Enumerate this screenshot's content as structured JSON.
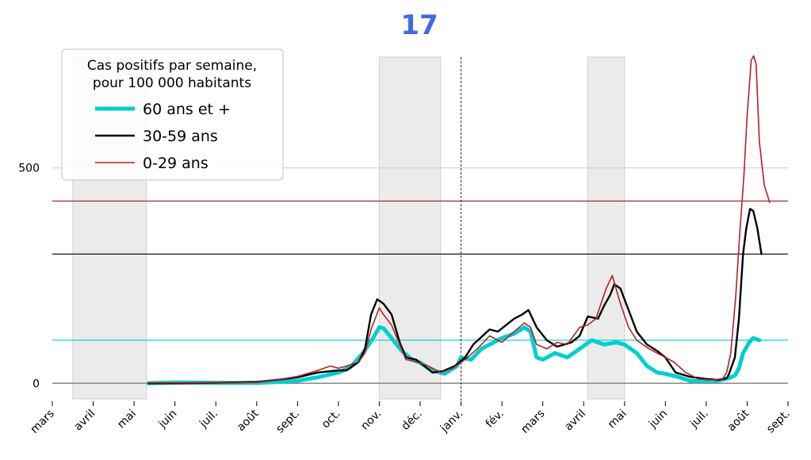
{
  "chart_data": {
    "type": "line",
    "title": "17",
    "title_color": "#4169e1",
    "legend": {
      "title_lines": [
        "Cas positifs par semaine,",
        "pour 100 000 habitants"
      ],
      "placement": "top-left"
    },
    "x_ticks": [
      "mars",
      "avril",
      "mai",
      "juin",
      "juil.",
      "août",
      "sept.",
      "oct.",
      "nov.",
      "déc.",
      "janv.",
      "fév.",
      "mars",
      "avril",
      "mai",
      "juin",
      "juil.",
      "août",
      "sept."
    ],
    "y_ticks": [
      0,
      500
    ],
    "ylim": [
      -40,
      770
    ],
    "xlim": [
      0,
      18
    ],
    "shaded_periods": [
      [
        0.5,
        2.3
      ],
      [
        8.0,
        9.5
      ],
      [
        13.1,
        14.0
      ]
    ],
    "vline_x": 10.0,
    "reference_lines": [
      {
        "y": 100,
        "color": "#00cccc"
      },
      {
        "y": 300,
        "color": "#000000"
      },
      {
        "y": 423,
        "color": "#b22222"
      }
    ],
    "series": [
      {
        "name": "60 ans et +",
        "color": "#00ced1",
        "width": 5,
        "points": [
          [
            2.35,
            0
          ],
          [
            3,
            2
          ],
          [
            4,
            1
          ],
          [
            5,
            1
          ],
          [
            5.5,
            3
          ],
          [
            6,
            6
          ],
          [
            6.5,
            14
          ],
          [
            7,
            25
          ],
          [
            7.3,
            38
          ],
          [
            7.6,
            70
          ],
          [
            7.85,
            105
          ],
          [
            8.0,
            130
          ],
          [
            8.1,
            128
          ],
          [
            8.3,
            105
          ],
          [
            8.55,
            75
          ],
          [
            8.8,
            55
          ],
          [
            9.0,
            48
          ],
          [
            9.3,
            30
          ],
          [
            9.6,
            22
          ],
          [
            9.9,
            40
          ],
          [
            10.0,
            60
          ],
          [
            10.25,
            55
          ],
          [
            10.5,
            80
          ],
          [
            10.8,
            95
          ],
          [
            11.0,
            105
          ],
          [
            11.3,
            115
          ],
          [
            11.55,
            130
          ],
          [
            11.7,
            120
          ],
          [
            11.85,
            60
          ],
          [
            12.0,
            55
          ],
          [
            12.3,
            70
          ],
          [
            12.6,
            60
          ],
          [
            12.9,
            80
          ],
          [
            13.2,
            100
          ],
          [
            13.5,
            90
          ],
          [
            13.8,
            95
          ],
          [
            14.0,
            90
          ],
          [
            14.3,
            70
          ],
          [
            14.55,
            40
          ],
          [
            14.8,
            25
          ],
          [
            15.0,
            22
          ],
          [
            15.3,
            15
          ],
          [
            15.6,
            6
          ],
          [
            15.9,
            5
          ],
          [
            16.3,
            6
          ],
          [
            16.55,
            12
          ],
          [
            16.7,
            18
          ],
          [
            16.8,
            35
          ],
          [
            16.9,
            70
          ],
          [
            17.05,
            95
          ],
          [
            17.15,
            105
          ],
          [
            17.3,
            100
          ]
        ]
      },
      {
        "name": "30-59 ans",
        "color": "#000000",
        "width": 2.4,
        "points": [
          [
            2.35,
            0
          ],
          [
            3,
            0
          ],
          [
            4,
            1
          ],
          [
            5,
            3
          ],
          [
            5.5,
            8
          ],
          [
            6,
            14
          ],
          [
            6.5,
            25
          ],
          [
            7,
            30
          ],
          [
            7.2,
            30
          ],
          [
            7.5,
            50
          ],
          [
            7.65,
            80
          ],
          [
            7.8,
            160
          ],
          [
            7.95,
            195
          ],
          [
            8.1,
            185
          ],
          [
            8.3,
            160
          ],
          [
            8.5,
            95
          ],
          [
            8.65,
            60
          ],
          [
            8.9,
            55
          ],
          [
            9.1,
            40
          ],
          [
            9.3,
            25
          ],
          [
            9.55,
            28
          ],
          [
            9.85,
            40
          ],
          [
            10.1,
            60
          ],
          [
            10.3,
            90
          ],
          [
            10.7,
            125
          ],
          [
            10.9,
            120
          ],
          [
            11.3,
            150
          ],
          [
            11.5,
            160
          ],
          [
            11.65,
            170
          ],
          [
            11.85,
            130
          ],
          [
            12.1,
            100
          ],
          [
            12.35,
            85
          ],
          [
            12.7,
            95
          ],
          [
            12.9,
            110
          ],
          [
            13.1,
            155
          ],
          [
            13.35,
            150
          ],
          [
            13.5,
            180
          ],
          [
            13.65,
            205
          ],
          [
            13.75,
            230
          ],
          [
            13.9,
            220
          ],
          [
            14.1,
            170
          ],
          [
            14.3,
            120
          ],
          [
            14.55,
            90
          ],
          [
            14.8,
            75
          ],
          [
            15.0,
            60
          ],
          [
            15.25,
            25
          ],
          [
            15.6,
            15
          ],
          [
            16.0,
            10
          ],
          [
            16.3,
            8
          ],
          [
            16.5,
            12
          ],
          [
            16.55,
            20
          ],
          [
            16.7,
            60
          ],
          [
            16.8,
            150
          ],
          [
            16.9,
            300
          ],
          [
            16.98,
            360
          ],
          [
            17.07,
            405
          ],
          [
            17.15,
            400
          ],
          [
            17.25,
            360
          ],
          [
            17.35,
            300
          ]
        ]
      },
      {
        "name": "0-29 ans",
        "color": "#b22222",
        "width": 1.6,
        "points": [
          [
            2.35,
            1
          ],
          [
            3,
            1
          ],
          [
            4,
            1
          ],
          [
            5,
            2
          ],
          [
            5.5,
            8
          ],
          [
            6,
            16
          ],
          [
            6.5,
            30
          ],
          [
            6.8,
            40
          ],
          [
            7.0,
            35
          ],
          [
            7.2,
            40
          ],
          [
            7.5,
            50
          ],
          [
            7.65,
            70
          ],
          [
            7.8,
            125
          ],
          [
            8.0,
            175
          ],
          [
            8.1,
            160
          ],
          [
            8.3,
            135
          ],
          [
            8.5,
            90
          ],
          [
            8.65,
            55
          ],
          [
            8.9,
            50
          ],
          [
            9.2,
            40
          ],
          [
            9.5,
            25
          ],
          [
            9.8,
            35
          ],
          [
            10.1,
            55
          ],
          [
            10.4,
            80
          ],
          [
            10.7,
            110
          ],
          [
            11.0,
            95
          ],
          [
            11.3,
            120
          ],
          [
            11.55,
            140
          ],
          [
            11.7,
            130
          ],
          [
            11.85,
            90
          ],
          [
            12.1,
            80
          ],
          [
            12.35,
            95
          ],
          [
            12.6,
            90
          ],
          [
            12.9,
            130
          ],
          [
            13.1,
            135
          ],
          [
            13.3,
            150
          ],
          [
            13.55,
            220
          ],
          [
            13.7,
            250
          ],
          [
            13.9,
            185
          ],
          [
            14.1,
            130
          ],
          [
            14.3,
            100
          ],
          [
            14.6,
            80
          ],
          [
            14.9,
            65
          ],
          [
            15.2,
            50
          ],
          [
            15.5,
            25
          ],
          [
            15.8,
            10
          ],
          [
            16.1,
            8
          ],
          [
            16.4,
            10
          ],
          [
            16.5,
            25
          ],
          [
            16.6,
            70
          ],
          [
            16.72,
            200
          ],
          [
            16.82,
            350
          ],
          [
            16.92,
            480
          ],
          [
            17.0,
            620
          ],
          [
            17.1,
            750
          ],
          [
            17.16,
            760
          ],
          [
            17.22,
            740
          ],
          [
            17.3,
            560
          ],
          [
            17.42,
            460
          ],
          [
            17.55,
            420
          ]
        ]
      }
    ]
  }
}
